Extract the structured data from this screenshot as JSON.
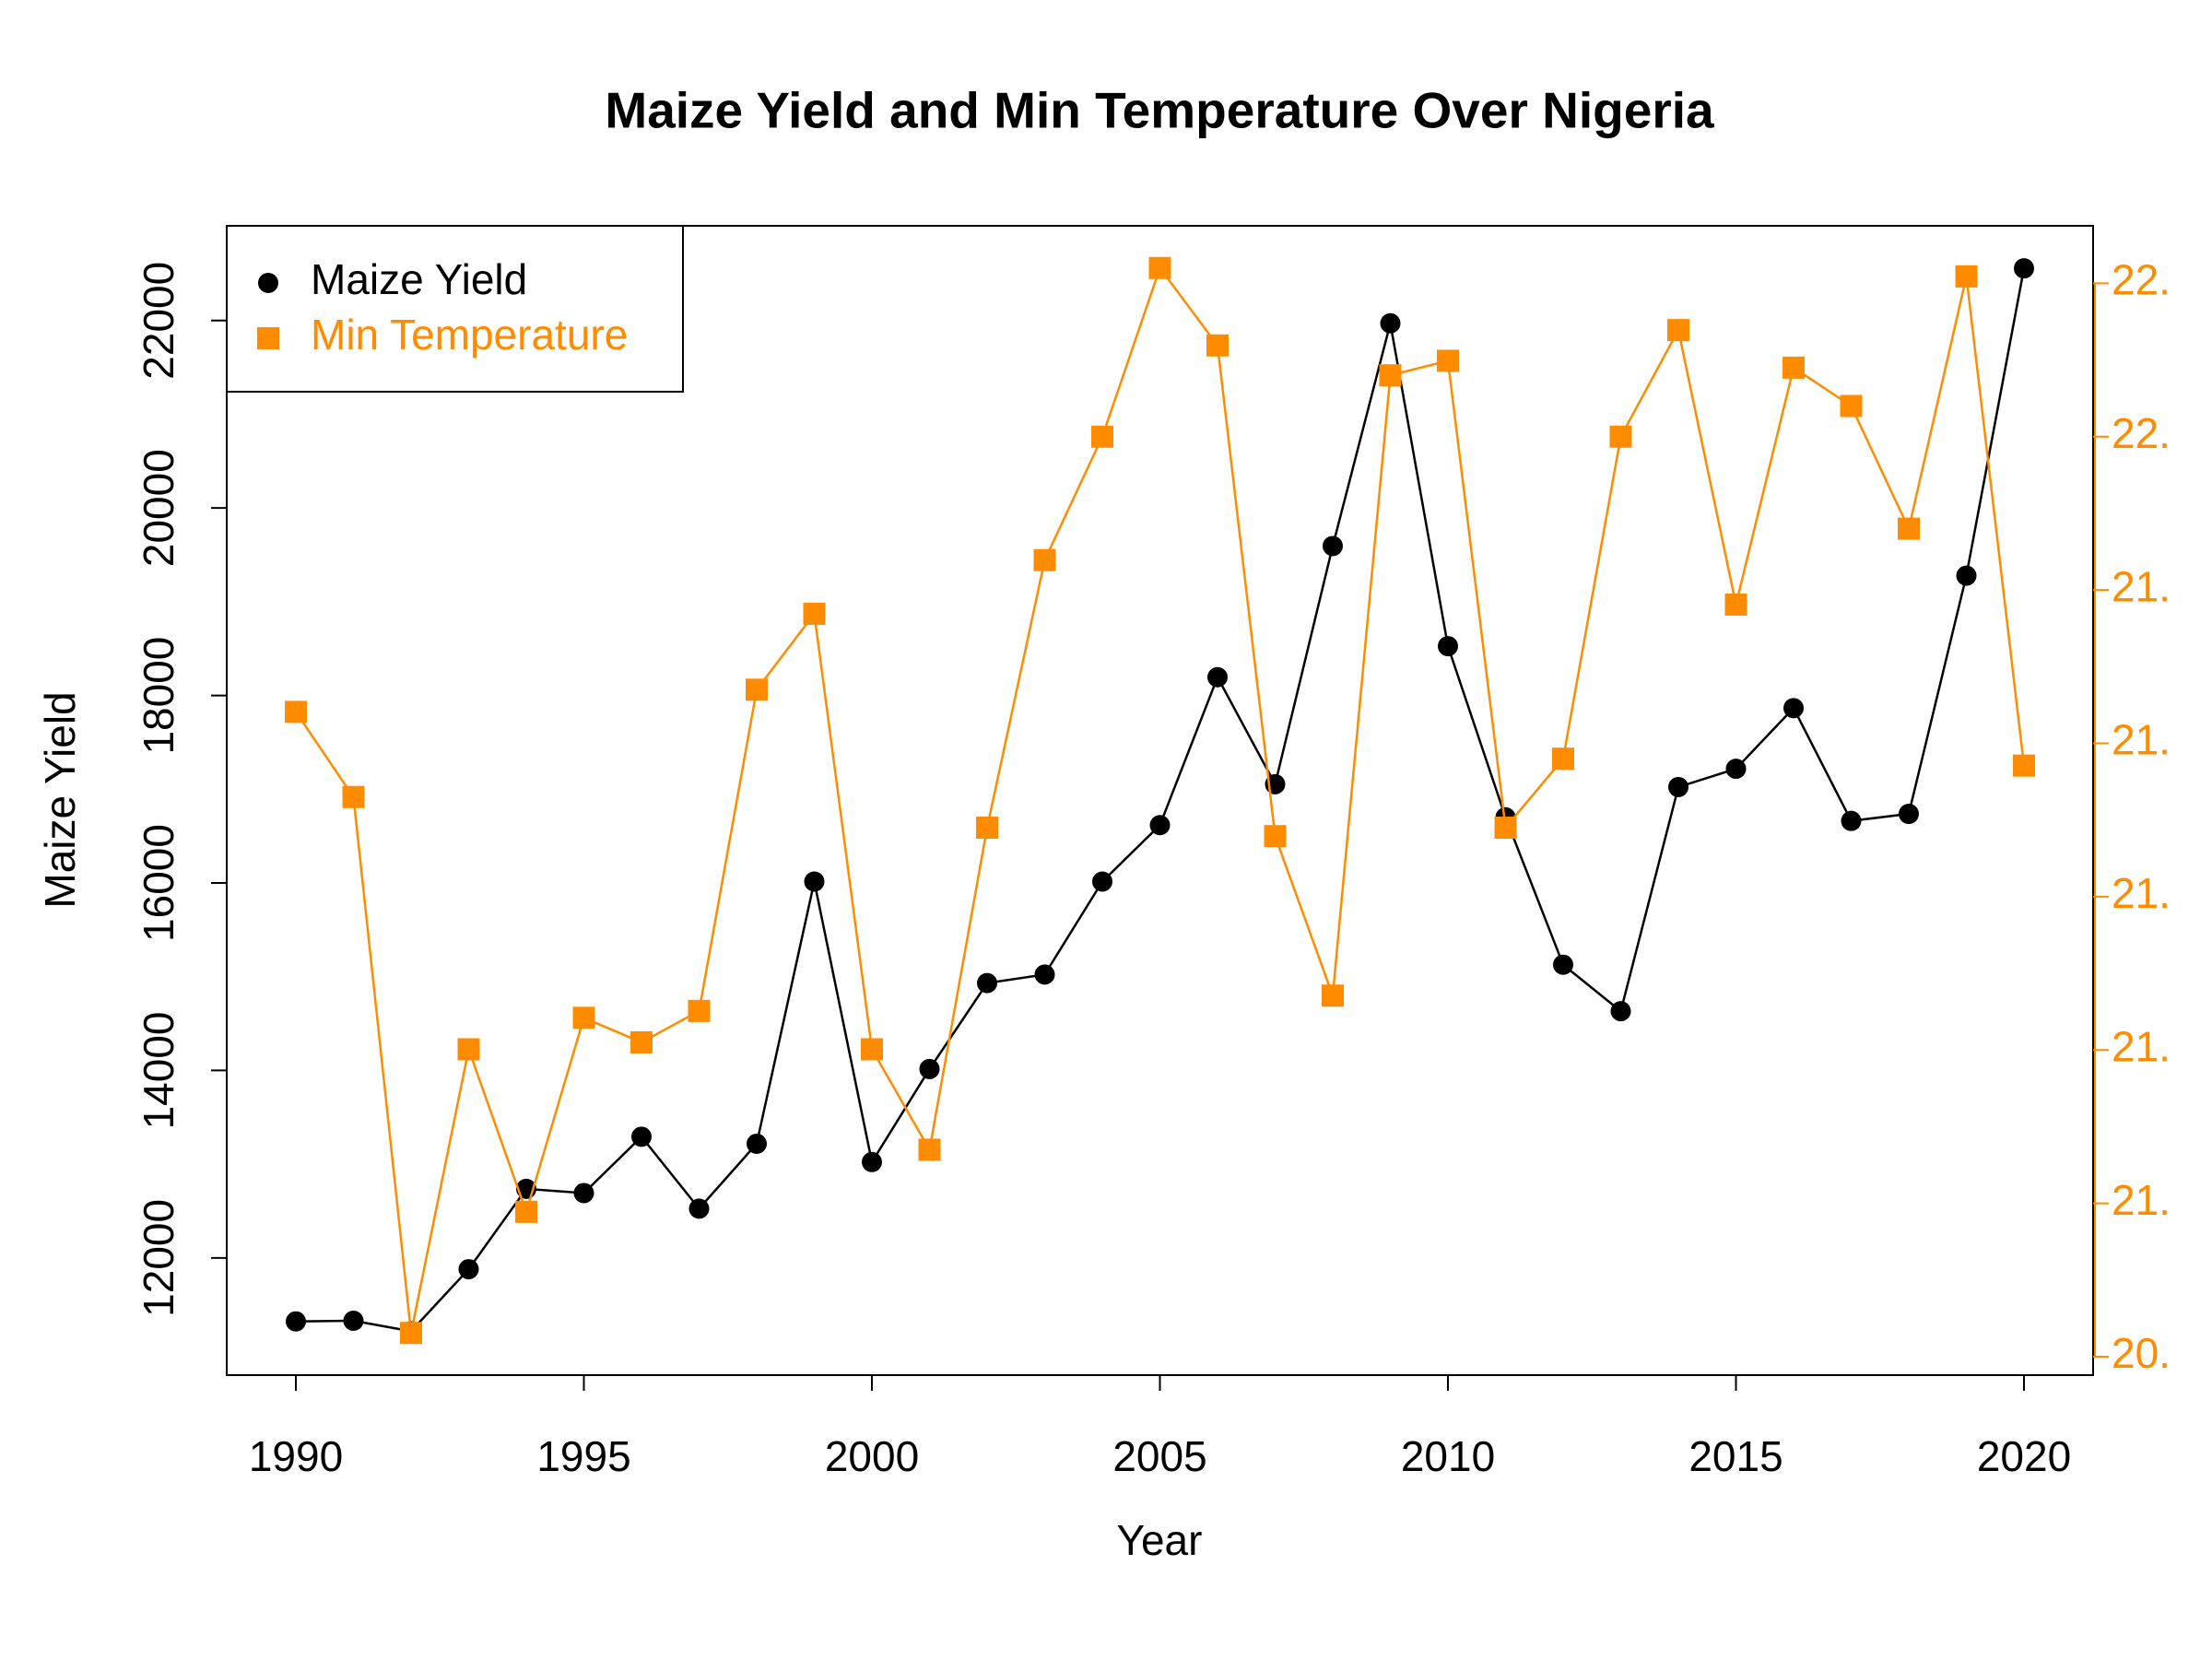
{
  "chart_data": {
    "type": "line",
    "title": "Maize Yield and Min Temperature Over Nigeria",
    "xlabel": "Year",
    "ylabel": "Maize Yield",
    "x": [
      1990,
      1991,
      1992,
      1993,
      1994,
      1995,
      1996,
      1997,
      1998,
      1999,
      2000,
      2001,
      2002,
      2003,
      2004,
      2005,
      2006,
      2007,
      2008,
      2009,
      2010,
      2011,
      2012,
      2013,
      2014,
      2015,
      2016,
      2017,
      2018,
      2019,
      2020
    ],
    "series": [
      {
        "name": "Maize Yield",
        "color": "#000000",
        "marker": "circle",
        "axis": "y",
        "values": [
          11323,
          11330,
          11218,
          11880,
          12737,
          12692,
          13293,
          12526,
          13218,
          16015,
          13023,
          14015,
          14932,
          15023,
          16015,
          16617,
          18195,
          17053,
          19594,
          21970,
          18526,
          16700,
          15128,
          14632,
          17023,
          17218,
          17865,
          16662,
          16737,
          19278,
          22556
        ]
      },
      {
        "name": "Min Temperature",
        "color": "#ff8c00",
        "marker": "square",
        "axis": "y2",
        "values": [
          21.641,
          21.53,
          20.831,
          21.201,
          20.989,
          21.242,
          21.21,
          21.251,
          21.67,
          21.769,
          21.201,
          21.07,
          21.49,
          21.839,
          22.0,
          22.22,
          22.119,
          21.479,
          21.271,
          22.08,
          22.099,
          21.49,
          21.58,
          22.0,
          22.139,
          21.781,
          22.09,
          22.04,
          21.88,
          22.209,
          21.571
        ]
      }
    ],
    "xlim": [
      1988.8,
      2021.2
    ],
    "xticks": [
      1990,
      1995,
      2000,
      2005,
      2010,
      2015,
      2020
    ],
    "ylim": [
      10750,
      23010
    ],
    "yticks": [
      12000,
      14000,
      16000,
      18000,
      20000,
      22000
    ],
    "y2lim": [
      20.776,
      22.275
    ],
    "y2ticks": [
      {
        "value": 20.8,
        "label": "20."
      },
      {
        "value": 21.0,
        "label": "21."
      },
      {
        "value": 21.2,
        "label": "21."
      },
      {
        "value": 21.4,
        "label": "21."
      },
      {
        "value": 21.6,
        "label": "21."
      },
      {
        "value": 21.8,
        "label": "21."
      },
      {
        "value": 22.0,
        "label": "22."
      },
      {
        "value": 22.2,
        "label": "22."
      }
    ],
    "legend": "topleft",
    "grid": false
  }
}
